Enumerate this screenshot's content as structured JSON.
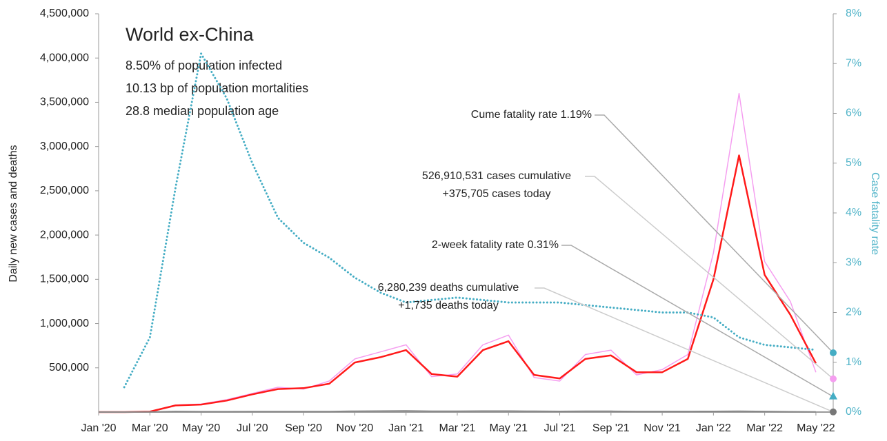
{
  "chart_data": {
    "type": "line",
    "title": "World ex-China",
    "subtitle": [
      "8.50% of population infected",
      "10.13 bp of population mortalities",
      "28.8 median population age"
    ],
    "y_label": "Daily new cases and deaths",
    "y2_label": "Case fatality rate",
    "categories": [
      "Jan '20",
      null,
      "Mar '20",
      null,
      "May '20",
      null,
      "Jul '20",
      null,
      "Sep '20",
      null,
      "Nov '20",
      null,
      "Jan '21",
      null,
      "Mar '21",
      null,
      "May '21",
      null,
      "Jul '21",
      null,
      "Sep '21",
      null,
      "Nov '21",
      null,
      "Jan '22",
      null,
      "Mar '22",
      null,
      "May '22"
    ],
    "ylim": [
      0,
      4500000
    ],
    "yticks": [
      {
        "value": 500000,
        "label": "500,000"
      },
      {
        "value": 1000000,
        "label": "1,000,000"
      },
      {
        "value": 1500000,
        "label": "1,500,000"
      },
      {
        "value": 2000000,
        "label": "2,000,000"
      },
      {
        "value": 2500000,
        "label": "2,500,000"
      },
      {
        "value": 3000000,
        "label": "3,000,000"
      },
      {
        "value": 3500000,
        "label": "3,500,000"
      },
      {
        "value": 4000000,
        "label": "4,000,000"
      },
      {
        "value": 4500000,
        "label": "4,500,000"
      }
    ],
    "y2lim": [
      0,
      8
    ],
    "y2ticks": [
      {
        "value": 0,
        "label": "0%"
      },
      {
        "value": 1,
        "label": "1%"
      },
      {
        "value": 2,
        "label": "2%"
      },
      {
        "value": 3,
        "label": "3%"
      },
      {
        "value": 4,
        "label": "4%"
      },
      {
        "value": 5,
        "label": "5%"
      },
      {
        "value": 6,
        "label": "6%"
      },
      {
        "value": 7,
        "label": "7%"
      },
      {
        "value": 8,
        "label": "8%"
      }
    ],
    "series": [
      {
        "color": "#f59ef0",
        "style": "solid",
        "width": 1.5,
        "values": [
          0,
          0,
          4000,
          80000,
          90000,
          140000,
          210000,
          280000,
          260000,
          350000,
          600000,
          680000,
          760000,
          400000,
          430000,
          760000,
          870000,
          390000,
          350000,
          650000,
          700000,
          420000,
          480000,
          650000,
          1800000,
          3600000,
          1700000,
          1250000,
          450000
        ]
      },
      {
        "color": "#ff1a1a",
        "style": "solid",
        "width": 2.5,
        "values": [
          0,
          0,
          5000,
          75000,
          85000,
          130000,
          200000,
          260000,
          270000,
          320000,
          560000,
          620000,
          700000,
          430000,
          400000,
          700000,
          800000,
          420000,
          380000,
          600000,
          640000,
          450000,
          450000,
          600000,
          1500000,
          2900000,
          1550000,
          1100000,
          550000
        ]
      },
      {
        "color": "#888888",
        "style": "solid",
        "width": 2,
        "values": [
          0,
          0,
          1000,
          7000,
          5000,
          5000,
          6000,
          6000,
          5500,
          6000,
          10000,
          12000,
          14000,
          10000,
          9000,
          12000,
          12000,
          9000,
          8000,
          10000,
          9000,
          7000,
          7000,
          7000,
          8000,
          10000,
          7000,
          4000,
          2000
        ]
      },
      {
        "color": "#45adc4",
        "style": "dotted",
        "width": 3,
        "axis": "y2",
        "values": [
          null,
          0.5,
          1.5,
          4.5,
          7.2,
          6.3,
          5.0,
          3.9,
          3.4,
          3.1,
          2.7,
          2.4,
          2.2,
          2.25,
          2.3,
          2.25,
          2.2,
          2.2,
          2.2,
          2.15,
          2.1,
          2.05,
          2.0,
          2.0,
          1.9,
          1.5,
          1.35,
          1.3,
          1.25
        ]
      }
    ],
    "annotations": [
      {
        "text": [
          "Cume fatality rate 1.19%"
        ],
        "value": 1.19,
        "axis": "y2",
        "color": "#45adc4",
        "marker": "circle"
      },
      {
        "text": [
          "526,910,531 cases cumulative",
          "+375,705 cases today"
        ],
        "value": 375705,
        "axis": "y",
        "color": "#f59ef0",
        "marker": "circle"
      },
      {
        "text": [
          "2-week fatality rate 0.31%"
        ],
        "value": 0.31,
        "axis": "y2",
        "color": "#45adc4",
        "marker": "triangle"
      },
      {
        "text": [
          "6,280,239 deaths cumulative",
          "+1,735 deaths today"
        ],
        "value": 1735,
        "axis": "y",
        "color": "#777777",
        "marker": "circle"
      }
    ]
  }
}
